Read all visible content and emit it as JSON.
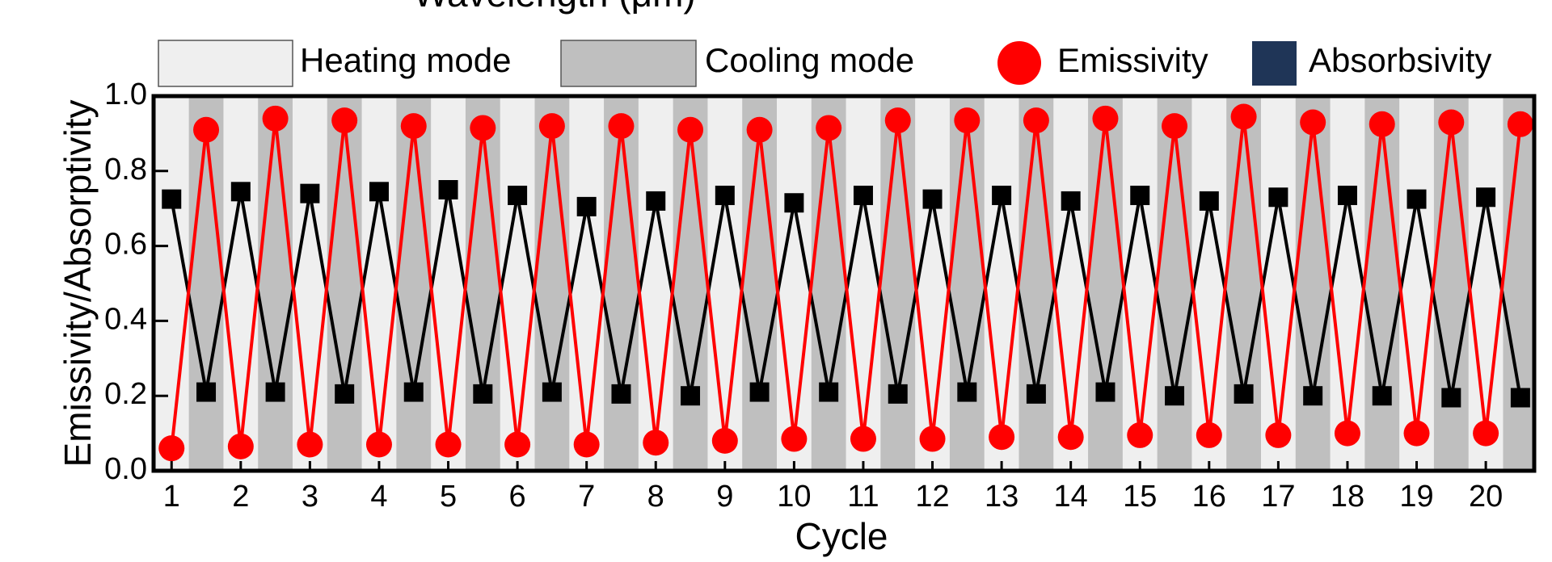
{
  "chart_data": {
    "type": "line",
    "top_text": "Wavelength (μm)",
    "xlabel": "Cycle",
    "ylabel": "Emissivity/Absorptivity",
    "x": [
      1,
      1.5,
      2,
      2.5,
      3,
      3.5,
      4,
      4.5,
      5,
      5.5,
      6,
      6.5,
      7,
      7.5,
      8,
      8.5,
      9,
      9.5,
      10,
      10.5,
      11,
      11.5,
      12,
      12.5,
      13,
      13.5,
      14,
      14.5,
      15,
      15.5,
      16,
      16.5,
      17,
      17.5,
      18,
      18.5,
      19,
      19.5,
      20,
      20.5
    ],
    "series": [
      {
        "name": "Emissivity",
        "color": "#ff0000",
        "marker": "circle",
        "values": [
          0.06,
          0.91,
          0.065,
          0.94,
          0.07,
          0.935,
          0.07,
          0.92,
          0.07,
          0.915,
          0.07,
          0.92,
          0.07,
          0.92,
          0.075,
          0.91,
          0.08,
          0.91,
          0.085,
          0.915,
          0.085,
          0.935,
          0.085,
          0.935,
          0.09,
          0.935,
          0.09,
          0.94,
          0.095,
          0.92,
          0.095,
          0.945,
          0.095,
          0.93,
          0.1,
          0.925,
          0.1,
          0.93,
          0.1,
          0.925
        ]
      },
      {
        "name": "Absorbsivity",
        "color": "#000000",
        "legend_color": "#1f3557",
        "marker": "square",
        "values": [
          0.725,
          0.21,
          0.745,
          0.21,
          0.74,
          0.205,
          0.745,
          0.21,
          0.75,
          0.205,
          0.735,
          0.21,
          0.705,
          0.205,
          0.72,
          0.2,
          0.735,
          0.21,
          0.715,
          0.21,
          0.735,
          0.205,
          0.725,
          0.21,
          0.735,
          0.205,
          0.72,
          0.21,
          0.735,
          0.2,
          0.72,
          0.205,
          0.73,
          0.2,
          0.735,
          0.2,
          0.725,
          0.195,
          0.73,
          0.195
        ]
      }
    ],
    "modes": [
      {
        "name": "Heating mode",
        "color": "#efefef"
      },
      {
        "name": "Cooling mode",
        "color": "#bfbfbf"
      }
    ],
    "xlim": [
      0.74,
      20.7
    ],
    "xticks": [
      1,
      2,
      3,
      4,
      5,
      6,
      7,
      8,
      9,
      10,
      11,
      12,
      13,
      14,
      15,
      16,
      17,
      18,
      19,
      20
    ],
    "ylim": [
      0,
      1
    ],
    "yticks": [
      {
        "value": 0,
        "label": "0.0"
      },
      {
        "value": 0.2,
        "label": "0.2"
      },
      {
        "value": 0.4,
        "label": "0.4"
      },
      {
        "value": 0.6,
        "label": "0.6"
      },
      {
        "value": 0.8,
        "label": "0.8"
      },
      {
        "value": 1,
        "label": "1.0"
      }
    ]
  }
}
